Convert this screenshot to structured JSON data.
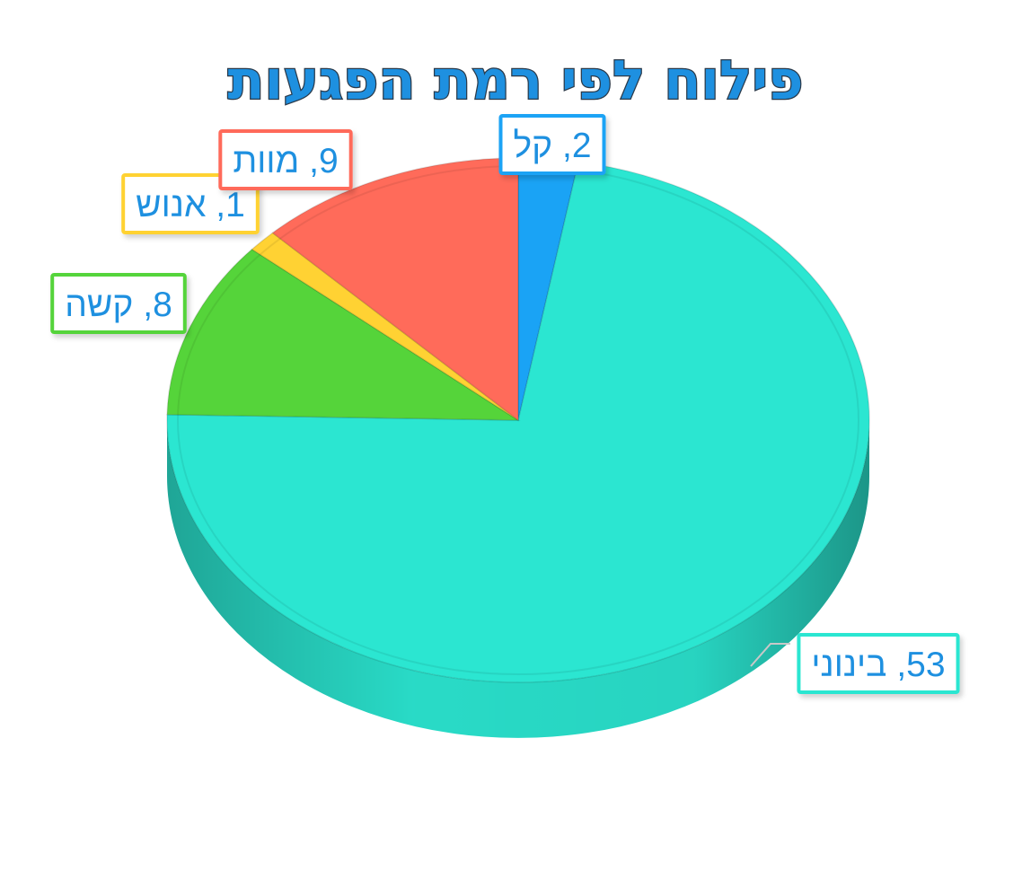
{
  "chart_data": {
    "type": "pie",
    "title": "פילוח לפי רמת הפגעות",
    "title_color": "#1E90E0",
    "categories": [
      "קל",
      "בינוני",
      "קשה",
      "אנוש",
      "מוות"
    ],
    "values": [
      2,
      53,
      8,
      1,
      9
    ],
    "colors": [
      "#1AA3F5",
      "#2BE6D1",
      "#55D43A",
      "#FFD233",
      "#FF6B5A"
    ],
    "labels": [
      "2, קל",
      "53, בינוני",
      "8, קשה",
      "1, אנוש",
      "9, מוות"
    ],
    "label_text_color": "#1E90E0",
    "legend": "none",
    "style": "3d"
  }
}
